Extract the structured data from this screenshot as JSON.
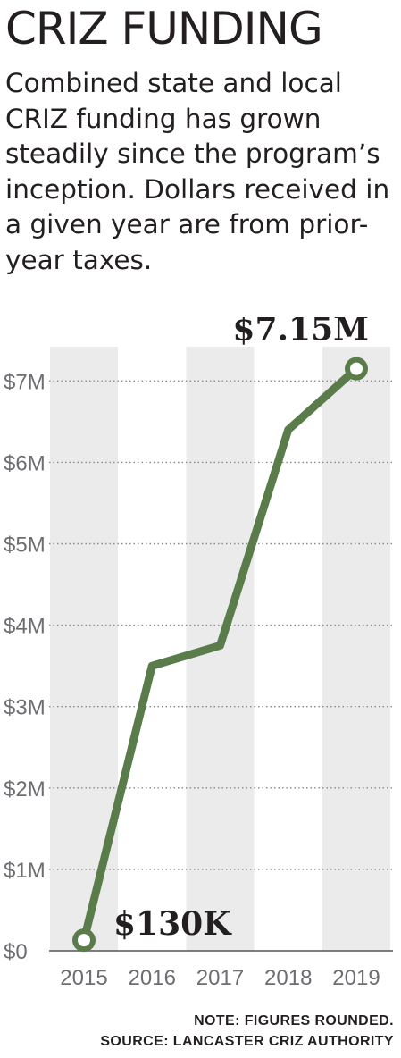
{
  "title": "CRIZ FUNDING",
  "subtitle": "Combined state and local CRIZ funding has grown steadily since the program’s inception. Dollars received in a given year are from prior-year taxes.",
  "note": "NOTE:  FIGURES ROUNDED.",
  "source": "SOURCE: LANCASTER CRIZ AUTHORITY",
  "colors": {
    "line": "#5a7c4b",
    "band": "#ebebeb",
    "grid": "#888888",
    "axis": "#555555",
    "text": "#231f20",
    "tick_text": "#6d6e71"
  },
  "chart_data": {
    "type": "line",
    "categories": [
      "2015",
      "2016",
      "2017",
      "2018",
      "2019"
    ],
    "values": [
      0.13,
      3.5,
      3.75,
      6.4,
      7.15
    ],
    "ylim": [
      0,
      7.6
    ],
    "yticks": [
      0,
      1,
      2,
      3,
      4,
      5,
      6,
      7
    ],
    "ytick_labels": [
      "$0",
      "$1M",
      "$2M",
      "$3M",
      "$4M",
      "$5M",
      "$6M",
      "$7M"
    ],
    "grid": "horizontal dotted",
    "alternating_column_bands": [
      0,
      2,
      4
    ],
    "annotations": [
      {
        "index": 0,
        "text": "$130K"
      },
      {
        "index": 4,
        "text": "$7.15M"
      }
    ]
  }
}
